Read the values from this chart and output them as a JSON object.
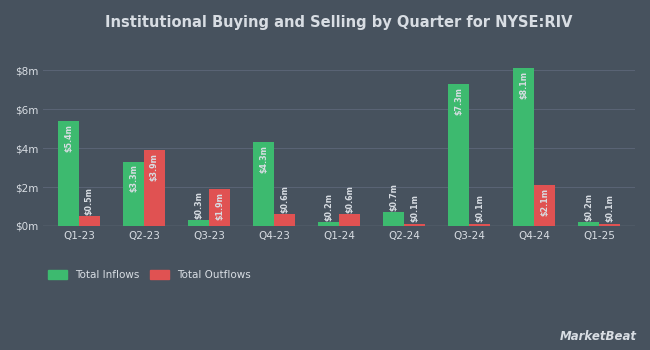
{
  "title": "Institutional Buying and Selling by Quarter for NYSE:RIV",
  "quarters": [
    "Q1-23",
    "Q2-23",
    "Q3-23",
    "Q4-23",
    "Q1-24",
    "Q2-24",
    "Q3-24",
    "Q4-24",
    "Q1-25"
  ],
  "inflows": [
    5.4,
    3.3,
    0.3,
    4.3,
    0.2,
    0.7,
    7.3,
    8.1,
    0.2
  ],
  "outflows": [
    0.5,
    3.9,
    1.9,
    0.6,
    0.6,
    0.1,
    0.1,
    2.1,
    0.1
  ],
  "inflow_labels": [
    "$5.4m",
    "$3.3m",
    "$0.3m",
    "$4.3m",
    "$0.2m",
    "$0.7m",
    "$7.3m",
    "$8.1m",
    "$0.2m"
  ],
  "outflow_labels": [
    "$0.5m",
    "$3.9m",
    "$1.9m",
    "$0.6m",
    "$0.6m",
    "$0.1m",
    "$0.1m",
    "$2.1m",
    "$0.1m"
  ],
  "inflow_color": "#3dba6f",
  "outflow_color": "#e05252",
  "background_color": "#47525e",
  "plot_bg_color": "#47525e",
  "text_color": "#d8dde3",
  "grid_color": "#5a6475",
  "ylim": [
    0,
    9.5
  ],
  "yticks": [
    0,
    2,
    4,
    6,
    8
  ],
  "ytick_labels": [
    "$0m",
    "$2m",
    "$4m",
    "$6m",
    "$8m"
  ],
  "legend_inflow": "Total Inflows",
  "legend_outflow": "Total Outflows",
  "bar_width": 0.32
}
